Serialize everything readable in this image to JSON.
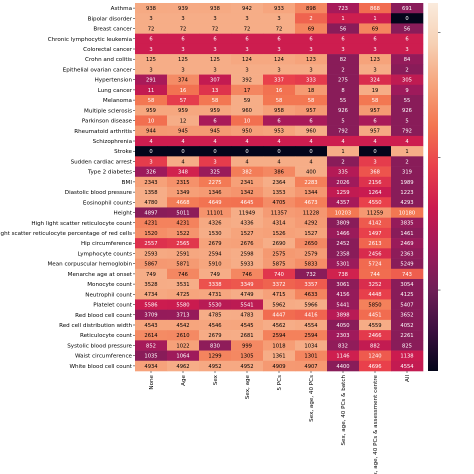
{
  "chart_data": {
    "type": "heatmap",
    "columns": [
      "None",
      "Age",
      "Sex",
      "Sex, age",
      "5 PCs",
      "Sex, age, 40 PCs",
      "Sex, age, 40 PCs & batch",
      "Sex, age, 40 PCs & assessment centre",
      "All"
    ],
    "rows": [
      "Asthma",
      "Bipolar disorder",
      "Breast cancer",
      "Chronic lymphocytic leukemia",
      "Colorectal cancer",
      "Crohn and colitis",
      "Epithelial ovarian cancer",
      "Hypertension",
      "Lung cancer",
      "Melanoma",
      "Multiple sclerosis",
      "Parkinson disease",
      "Rheumatoid arthritis",
      "Schizophrenia",
      "Stroke",
      "Sudden cardiac arrest",
      "Type 2 diabetes",
      "BMI",
      "Diastolic blood pressure",
      "Eosinophil counts",
      "Height",
      "High light scatter reticulocyte count",
      "High light scatter reticulocyte percentage of red cells",
      "Hip circumference",
      "Lymphocyte counts",
      "Mean corpuscular hemoglobin",
      "Menarche age at onset",
      "Monocyte count",
      "Neutrophil count",
      "Platelet count",
      "Red blood cell count",
      "Red cell distribution width",
      "Reticulocyte count",
      "Systolic blood pressure",
      "Waist circumference",
      "White blood cell count"
    ],
    "values": [
      [
        938,
        939,
        938,
        942,
        933,
        898,
        723,
        868,
        691
      ],
      [
        3,
        3,
        3,
        3,
        3,
        2,
        1,
        1,
        0
      ],
      [
        72,
        72,
        72,
        72,
        72,
        69,
        56,
        69,
        56
      ],
      [
        6,
        6,
        6,
        6,
        6,
        6,
        6,
        6,
        6
      ],
      [
        3,
        3,
        3,
        3,
        3,
        3,
        3,
        3,
        3
      ],
      [
        125,
        125,
        125,
        124,
        124,
        123,
        82,
        123,
        84
      ],
      [
        3,
        3,
        3,
        3,
        3,
        3,
        2,
        3,
        2
      ],
      [
        291,
        374,
        307,
        392,
        337,
        333,
        275,
        324,
        305
      ],
      [
        11,
        16,
        13,
        17,
        16,
        18,
        8,
        19,
        9
      ],
      [
        58,
        57,
        58,
        59,
        58,
        58,
        55,
        58,
        55
      ],
      [
        959,
        959,
        959,
        960,
        958,
        957,
        926,
        957,
        926
      ],
      [
        10,
        12,
        6,
        10,
        6,
        6,
        5,
        6,
        5
      ],
      [
        944,
        945,
        945,
        950,
        953,
        960,
        792,
        957,
        792
      ],
      [
        4,
        4,
        4,
        4,
        4,
        4,
        4,
        4,
        4
      ],
      [
        0,
        0,
        0,
        0,
        0,
        0,
        1,
        0,
        1
      ],
      [
        3,
        4,
        3,
        4,
        4,
        4,
        2,
        3,
        2
      ],
      [
        326,
        348,
        325,
        382,
        386,
        400,
        335,
        368,
        319
      ],
      [
        2343,
        2315,
        2275,
        2341,
        2364,
        2283,
        2026,
        2156,
        1989
      ],
      [
        1358,
        1349,
        1346,
        1342,
        1353,
        1344,
        1259,
        1264,
        1223
      ],
      [
        4780,
        4668,
        4649,
        4645,
        4705,
        4673,
        4357,
        4550,
        4293
      ],
      [
        4897,
        5011,
        11101,
        11949,
        11357,
        11228,
        10203,
        11259,
        10180
      ],
      [
        4231,
        4231,
        4326,
        4336,
        4314,
        4292,
        3809,
        4142,
        3835
      ],
      [
        1520,
        1522,
        1530,
        1527,
        1526,
        1527,
        1466,
        1497,
        1461
      ],
      [
        2557,
        2565,
        2679,
        2676,
        2690,
        2650,
        2452,
        2613,
        2469
      ],
      [
        2593,
        2591,
        2594,
        2598,
        2575,
        2579,
        2358,
        2456,
        2363
      ],
      [
        5867,
        5871,
        5910,
        5933,
        5875,
        5833,
        5301,
        5724,
        5249
      ],
      [
        749,
        746,
        749,
        746,
        740,
        732,
        738,
        744,
        743
      ],
      [
        3528,
        3531,
        3338,
        3349,
        3372,
        3357,
        3061,
        3252,
        3054
      ],
      [
        4734,
        4725,
        4731,
        4749,
        4715,
        4633,
        4156,
        4448,
        4125
      ],
      [
        5586,
        5580,
        5530,
        5541,
        5962,
        5966,
        5441,
        5850,
        5407
      ],
      [
        3709,
        3713,
        4785,
        4783,
        4447,
        4416,
        3898,
        4451,
        3652
      ],
      [
        4543,
        4542,
        4546,
        4545,
        4562,
        4554,
        4050,
        4559,
        4052
      ],
      [
        2614,
        2610,
        2679,
        2681,
        2594,
        2594,
        2303,
        2466,
        2261
      ],
      [
        852,
        1022,
        830,
        999,
        1018,
        1034,
        832,
        882,
        825
      ],
      [
        1035,
        1064,
        1299,
        1305,
        1361,
        1301,
        1146,
        1240,
        1138
      ],
      [
        4934,
        4962,
        4952,
        4952,
        4909,
        4907,
        4400,
        4696,
        4554
      ]
    ]
  },
  "colors": {
    "scale": [
      "#03051a",
      "#3c0f3f",
      "#701f57",
      "#a11a5b",
      "#cb1b4f",
      "#e9414b",
      "#f37651",
      "#f6a47c",
      "#f6d0b4",
      "#faebdd"
    ],
    "text_light": "#ffffff",
    "text_dark": "#000000"
  }
}
